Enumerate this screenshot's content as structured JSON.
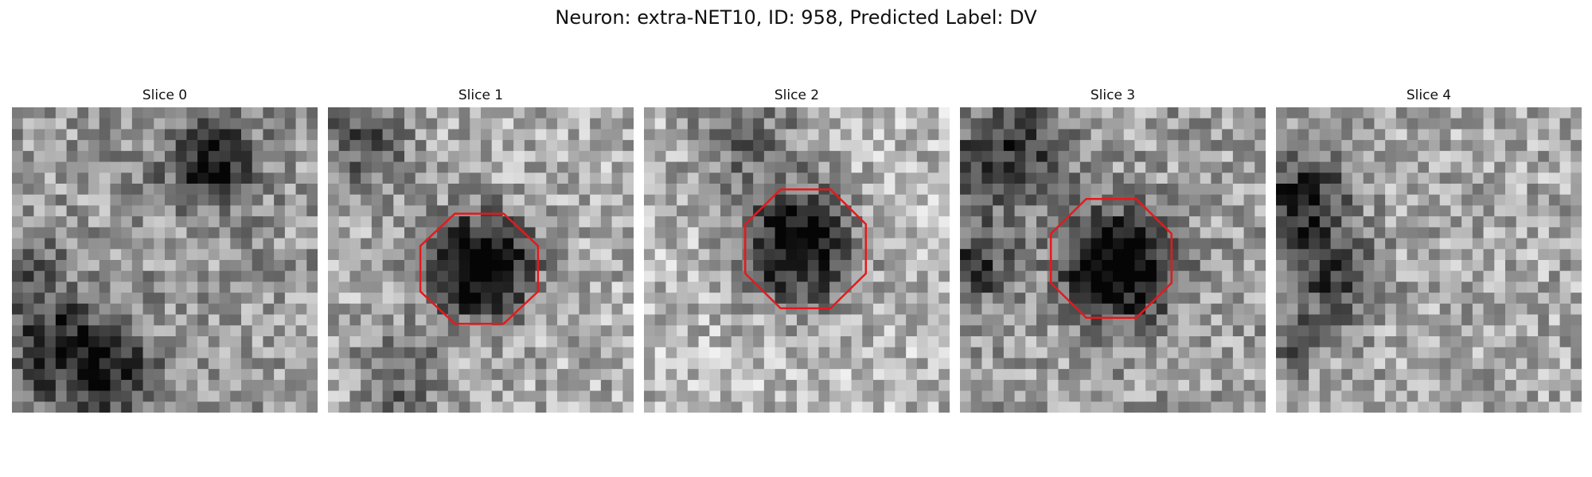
{
  "figure": {
    "title": "Neuron: extra-NET10, ID: 958, Predicted Label: DV"
  },
  "outline_color": "#e41a1c",
  "image_grid": {
    "rows": 28,
    "cols": 28
  },
  "panels": [
    {
      "title": "Slice 0",
      "has_outline": false
    },
    {
      "title": "Slice 1",
      "has_outline": true
    },
    {
      "title": "Slice 2",
      "has_outline": true
    },
    {
      "title": "Slice 3",
      "has_outline": true
    },
    {
      "title": "Slice 4",
      "has_outline": false
    }
  ]
}
